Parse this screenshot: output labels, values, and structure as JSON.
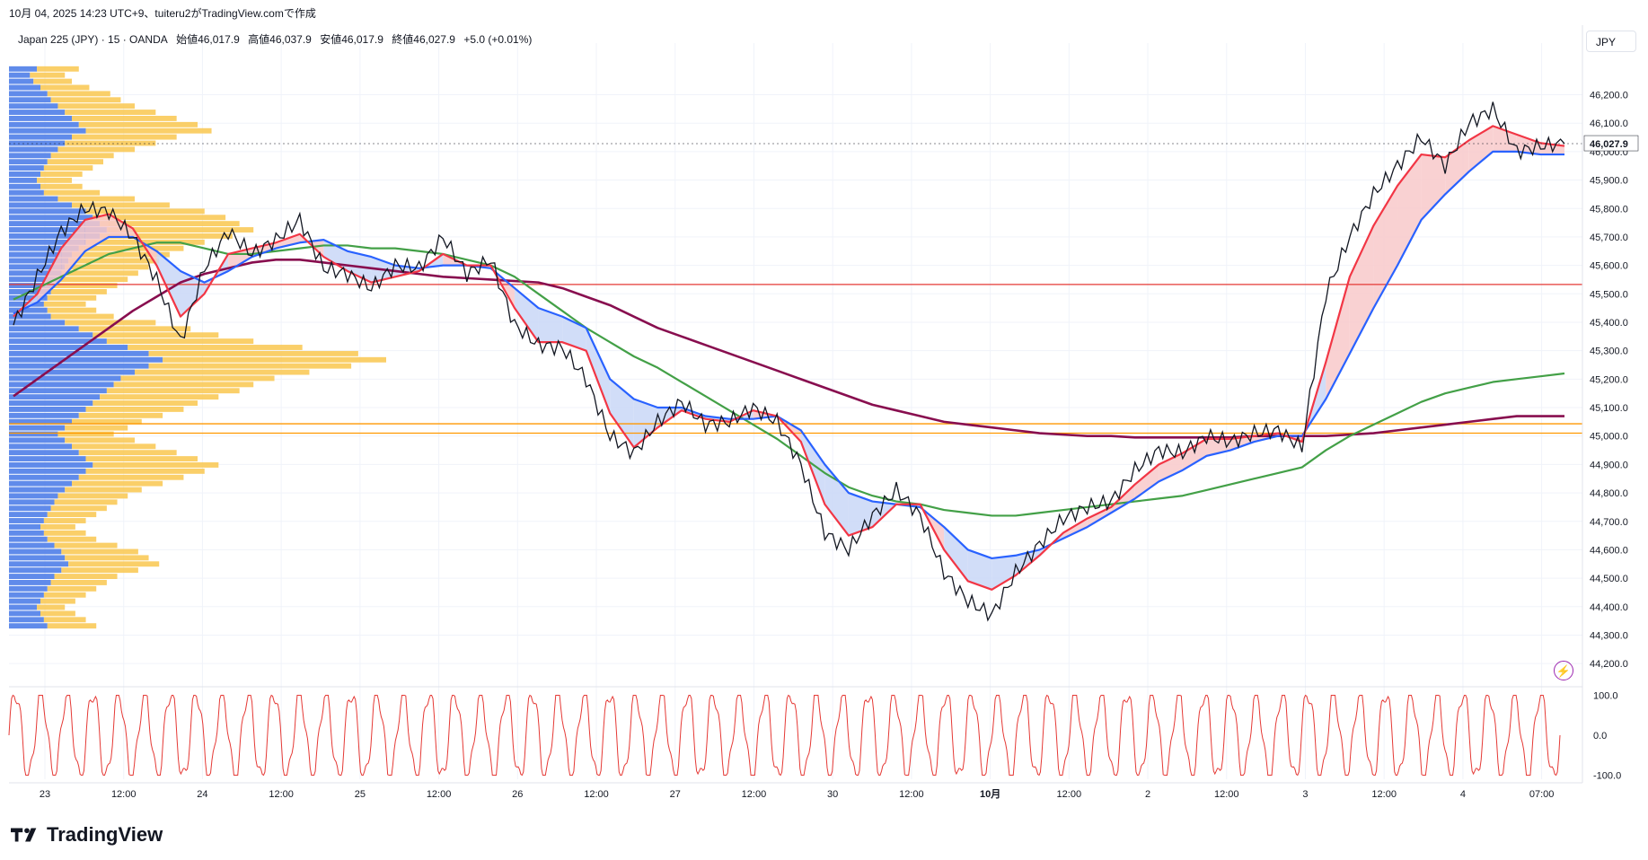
{
  "header": {
    "caption": "10月 04, 2025 14:23 UTC+9、tuiteru2がTradingView.comで作成",
    "symbol": "Japan 225 (JPY) · 15 · OANDA",
    "open": "始値46,017.9",
    "high": "高値46,037.9",
    "low": "安値46,017.9",
    "close": "終値46,027.9",
    "change": "+5.0 (+0.01%)",
    "currency": "JPY"
  },
  "brand": "TradingView",
  "colors": {
    "price": "#131722",
    "ema_fast": "#f23645",
    "ema_mid": "#2962ff",
    "sma_green": "#43a047",
    "sma_long": "#880e4f",
    "level_red": "#e53935",
    "level_orange": "#ff9800",
    "vp_up": "#f9c74f",
    "vp_down": "#4f7ee8",
    "oscillator": "#e53935",
    "fill_bull": "#f8c9ca",
    "fill_bear": "#c9d7f7",
    "grid": "#f0f3fa",
    "last_price": "#131722"
  },
  "chart_data": {
    "type": "line",
    "title": "Japan 225 (JPY) · 15 · OANDA",
    "ylim": [
      44150,
      46350
    ],
    "x_tick_labels": [
      "23",
      "12:00",
      "24",
      "12:00",
      "25",
      "12:00",
      "26",
      "12:00",
      "27",
      "12:00",
      "30",
      "12:00",
      "10月",
      "12:00",
      "2",
      "12:00",
      "3",
      "12:00",
      "4",
      "07:00"
    ],
    "y_tick_labels": [
      "46,200.0",
      "46,100.0",
      "46,000.0",
      "45,900.0",
      "45,800.0",
      "45,700.0",
      "45,600.0",
      "45,500.0",
      "45,400.0",
      "45,300.0",
      "45,200.0",
      "45,100.0",
      "45,000.0",
      "44,900.0",
      "44,800.0",
      "44,700.0",
      "44,600.0",
      "44,500.0",
      "44,400.0",
      "44,300.0",
      "44,200.0"
    ],
    "last_price_label": "46,027.9",
    "last_price": 46027.9,
    "horizontal_levels": [
      {
        "value": 45533,
        "color": "#e53935"
      },
      {
        "value": 45043,
        "color": "#ff9800"
      },
      {
        "value": 45010,
        "color": "#ff9800"
      }
    ],
    "series": [
      {
        "key": "price",
        "values": [
          45390,
          45560,
          45720,
          45800,
          45790,
          45700,
          45550,
          45330,
          45590,
          45720,
          45640,
          45690,
          45760,
          45590,
          45570,
          45520,
          45600,
          45590,
          45700,
          45570,
          45620,
          45390,
          45320,
          45310,
          45200,
          45000,
          44940,
          45050,
          45120,
          45040,
          45050,
          45100,
          45050,
          44900,
          44660,
          44600,
          44720,
          44810,
          44720,
          44520,
          44420,
          44370,
          44520,
          44620,
          44710,
          44750,
          44770,
          44880,
          44950,
          44940,
          45000,
          44980,
          45010,
          45020,
          44960,
          45500,
          45700,
          45850,
          45950,
          46050,
          45950,
          46100,
          46150,
          46000,
          46020,
          46027.9
        ]
      },
      {
        "key": "ema_fast",
        "values": [
          45420,
          45500,
          45660,
          45760,
          45780,
          45730,
          45600,
          45420,
          45500,
          45640,
          45660,
          45680,
          45710,
          45630,
          45580,
          45540,
          45560,
          45580,
          45640,
          45600,
          45600,
          45450,
          45330,
          45330,
          45300,
          45080,
          44960,
          45030,
          45090,
          45060,
          45050,
          45090,
          45070,
          44980,
          44760,
          44650,
          44680,
          44760,
          44760,
          44600,
          44490,
          44460,
          44510,
          44580,
          44660,
          44710,
          44750,
          44830,
          44900,
          44940,
          44990,
          44990,
          45000,
          45010,
          44980,
          45260,
          45560,
          45740,
          45880,
          45990,
          45980,
          46040,
          46090,
          46060,
          46030,
          46020
        ]
      },
      {
        "key": "ema_mid",
        "values": [
          45430,
          45470,
          45550,
          45650,
          45700,
          45700,
          45650,
          45580,
          45540,
          45580,
          45630,
          45660,
          45680,
          45690,
          45650,
          45630,
          45600,
          45590,
          45600,
          45600,
          45590,
          45520,
          45450,
          45420,
          45380,
          45200,
          45130,
          45100,
          45100,
          45070,
          45060,
          45060,
          45070,
          45020,
          44900,
          44800,
          44770,
          44760,
          44750,
          44680,
          44600,
          44570,
          44580,
          44600,
          44640,
          44680,
          44730,
          44780,
          44840,
          44880,
          44930,
          44950,
          44980,
          45000,
          45000,
          45130,
          45290,
          45450,
          45600,
          45760,
          45850,
          45930,
          46000,
          46000,
          45990,
          45990
        ]
      },
      {
        "key": "sma_green",
        "values": [
          45480,
          45520,
          45560,
          45600,
          45640,
          45660,
          45680,
          45680,
          45660,
          45640,
          45640,
          45650,
          45660,
          45670,
          45670,
          45660,
          45660,
          45650,
          45640,
          45620,
          45600,
          45560,
          45500,
          45440,
          45380,
          45330,
          45280,
          45240,
          45190,
          45140,
          45090,
          45040,
          44990,
          44930,
          44870,
          44820,
          44790,
          44770,
          44760,
          44740,
          44730,
          44720,
          44720,
          44730,
          44740,
          44750,
          44760,
          44770,
          44780,
          44790,
          44810,
          44830,
          44850,
          44870,
          44890,
          44950,
          45000,
          45040,
          45080,
          45120,
          45150,
          45170,
          45190,
          45200,
          45210,
          45220
        ]
      },
      {
        "key": "sma_long",
        "values": [
          45140,
          45200,
          45260,
          45320,
          45380,
          45440,
          45490,
          45540,
          45570,
          45590,
          45610,
          45620,
          45620,
          45610,
          45600,
          45590,
          45580,
          45570,
          45560,
          45555,
          45550,
          45545,
          45540,
          45520,
          45490,
          45460,
          45420,
          45380,
          45350,
          45320,
          45290,
          45260,
          45230,
          45200,
          45170,
          45140,
          45110,
          45090,
          45070,
          45050,
          45040,
          45030,
          45020,
          45010,
          45005,
          45000,
          45000,
          44995,
          44995,
          44995,
          44995,
          44995,
          45000,
          45000,
          45000,
          45000,
          45005,
          45010,
          45020,
          45030,
          45040,
          45050,
          45060,
          45070,
          45070,
          45070
        ]
      }
    ],
    "oscillator": {
      "y_tick_labels": [
        "100.0",
        "0.0",
        "-100.0"
      ],
      "ylim": [
        -110,
        110
      ],
      "cycles": 60
    },
    "volume_profile": {
      "price_min": 44320,
      "price_max": 46300,
      "up_values": [
        12,
        10,
        11,
        14,
        18,
        20,
        22,
        26,
        30,
        34,
        36,
        30,
        26,
        22,
        18,
        16,
        14,
        12,
        10,
        12,
        16,
        22,
        28,
        34,
        38,
        40,
        42,
        38,
        34,
        30,
        28,
        26,
        24,
        22,
        20,
        18,
        16,
        14,
        12,
        14,
        18,
        26,
        32,
        36,
        42,
        50,
        60,
        64,
        58,
        50,
        44,
        40,
        38,
        34,
        30,
        28,
        24,
        20,
        18,
        16,
        20,
        24,
        28,
        32,
        36,
        34,
        30,
        26,
        22,
        20,
        18,
        16,
        14,
        12,
        10,
        12,
        14,
        18,
        22,
        24,
        26,
        22,
        18,
        16,
        14,
        12,
        10,
        8,
        10,
        12,
        14
      ],
      "down_values": [
        8,
        6,
        7,
        9,
        11,
        12,
        14,
        16,
        18,
        20,
        22,
        18,
        16,
        14,
        12,
        11,
        10,
        9,
        8,
        9,
        10,
        14,
        18,
        22,
        24,
        26,
        28,
        26,
        22,
        20,
        18,
        17,
        16,
        15,
        14,
        13,
        12,
        11,
        10,
        11,
        12,
        16,
        20,
        24,
        28,
        34,
        40,
        44,
        40,
        36,
        32,
        30,
        28,
        26,
        24,
        22,
        20,
        18,
        16,
        14,
        16,
        18,
        20,
        22,
        24,
        22,
        20,
        18,
        16,
        14,
        13,
        12,
        11,
        10,
        9,
        10,
        11,
        13,
        15,
        16,
        17,
        15,
        13,
        12,
        11,
        10,
        9,
        8,
        9,
        10,
        11
      ]
    }
  }
}
